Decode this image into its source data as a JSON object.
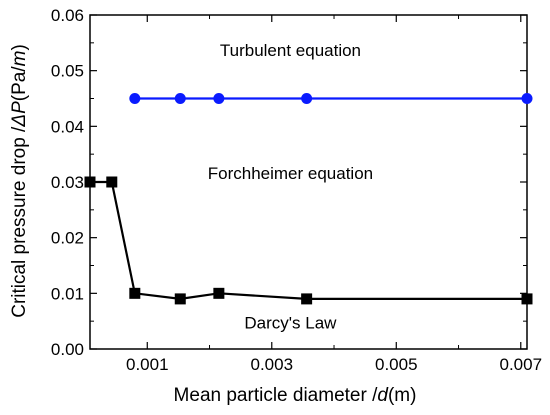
{
  "chart_data": {
    "type": "line",
    "title": "",
    "xlabel": "Mean particle diameter /d(m)",
    "xlabel_parts": {
      "prefix": "Mean particle diameter /",
      "var": "d",
      "suffix": "(m)"
    },
    "ylabel": "Critical pressure drop /ΔP(Pa/m)",
    "ylabel_parts": {
      "prefix": "Critical pressure drop /",
      "var": "ΔP",
      "suffix": "(Pa/",
      "var2": "m",
      "end": ")"
    },
    "xlim": [
      8e-05,
      0.0071
    ],
    "ylim": [
      0,
      0.06
    ],
    "x_ticks": [
      0.001,
      0.003,
      0.005,
      0.007
    ],
    "x_tick_labels": [
      "0.001",
      "0.003",
      "0.005",
      "0.007"
    ],
    "y_ticks": [
      0,
      0.01,
      0.02,
      0.03,
      0.04,
      0.05,
      0.06
    ],
    "y_tick_labels": [
      "0.00",
      "0.01",
      "0.02",
      "0.03",
      "0.04",
      "0.05",
      "0.06"
    ],
    "grid": false,
    "series": [
      {
        "marker": "circle",
        "color": "#0a1bff",
        "x": [
          0.0008,
          0.00153,
          0.00215,
          0.00356,
          0.0071
        ],
        "y": [
          0.045,
          0.045,
          0.045,
          0.045,
          0.045
        ]
      },
      {
        "marker": "square",
        "color": "#000000",
        "x": [
          8e-05,
          0.00043,
          0.0008,
          0.00153,
          0.00215,
          0.00356,
          0.0071
        ],
        "y": [
          0.03,
          0.03,
          0.01,
          0.009,
          0.01,
          0.009,
          0.009
        ]
      }
    ],
    "annotations": [
      {
        "text": "Turbulent equation",
        "x": 0.0033,
        "y": 0.0526
      },
      {
        "text": "Forchheimer equation",
        "x": 0.0033,
        "y": 0.0305
      },
      {
        "text": "Darcy's Law",
        "x": 0.0033,
        "y": 0.0037
      }
    ]
  }
}
